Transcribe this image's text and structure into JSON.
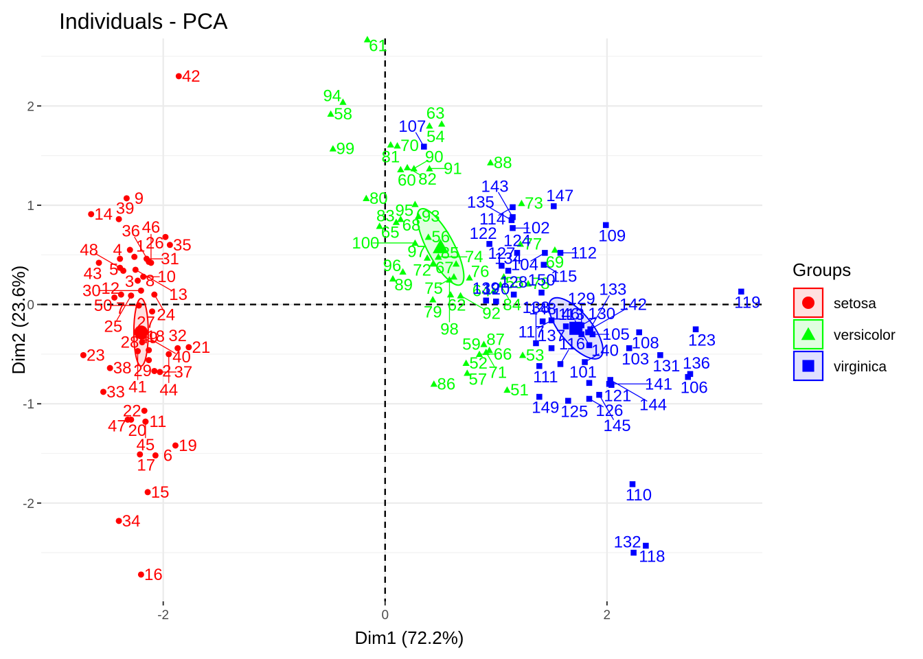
{
  "chart_data": {
    "type": "scatter",
    "title": "Individuals - PCA",
    "xlabel": "Dim1 (72.2%)",
    "ylabel": "Dim2 (23.6%)",
    "xlim": [
      -3.1,
      3.4
    ],
    "ylim": [
      -2.99,
      2.68
    ],
    "x_ticks": [
      -2,
      0,
      2
    ],
    "y_ticks": [
      -2,
      -1,
      0,
      1,
      2
    ],
    "x_tick_labels": [
      "-2",
      "0",
      "2"
    ],
    "y_tick_labels": [
      "-2",
      "-1",
      "0",
      "1",
      "2"
    ],
    "grid": true,
    "reference_lines": {
      "x": 0,
      "y": 0,
      "style": "dashed"
    },
    "legend": {
      "title": "Groups",
      "placement": "right",
      "items": [
        {
          "name": "setosa",
          "color": "#ff0000",
          "shape": "circle"
        },
        {
          "name": "versicolor",
          "color": "#00ff00",
          "shape": "triangle"
        },
        {
          "name": "virginica",
          "color": "#0000ff",
          "shape": "square"
        }
      ]
    },
    "series": [
      {
        "name": "setosa",
        "color": "#ff0000",
        "shape": "circle",
        "centroid": [
          -2.2,
          -0.28
        ],
        "ellipse": {
          "cx": -2.2,
          "cy": -0.28,
          "rx": 0.065,
          "ry": 0.34,
          "angle": 0
        },
        "points": [
          {
            "label": "1",
            "x": -2.26,
            "y": 0.48
          },
          {
            "label": "2",
            "x": -2.08,
            "y": -0.67
          },
          {
            "label": "3",
            "x": -2.36,
            "y": 0.34
          },
          {
            "label": "4",
            "x": -2.3,
            "y": 0.55
          },
          {
            "label": "5",
            "x": -2.39,
            "y": 0.46
          },
          {
            "label": "6",
            "x": -2.07,
            "y": -1.52
          },
          {
            "label": "7",
            "x": -2.44,
            "y": 0.07
          },
          {
            "label": "8",
            "x": -2.23,
            "y": 0.24
          },
          {
            "label": "9",
            "x": -2.33,
            "y": 1.07
          },
          {
            "label": "10",
            "x": -2.18,
            "y": 0.28
          },
          {
            "label": "11",
            "x": -2.16,
            "y": -1.18
          },
          {
            "label": "12",
            "x": -2.38,
            "y": 0.1
          },
          {
            "label": "13",
            "x": -2.25,
            "y": 0.35
          },
          {
            "label": "14",
            "x": -2.65,
            "y": 0.91
          },
          {
            "label": "15",
            "x": -2.14,
            "y": -1.89
          },
          {
            "label": "16",
            "x": -2.2,
            "y": -2.72
          },
          {
            "label": "17",
            "x": -2.21,
            "y": -1.51
          },
          {
            "label": "18",
            "x": -2.18,
            "y": -0.32
          },
          {
            "label": "19",
            "x": -1.89,
            "y": -1.42
          },
          {
            "label": "20",
            "x": -2.29,
            "y": -1.16
          },
          {
            "label": "21",
            "x": -1.77,
            "y": -0.43
          },
          {
            "label": "22",
            "x": -2.17,
            "y": -1.07
          },
          {
            "label": "23",
            "x": -2.72,
            "y": -0.51
          },
          {
            "label": "24",
            "x": -2.08,
            "y": 0.1
          },
          {
            "label": "25",
            "x": -2.29,
            "y": 0.09
          },
          {
            "label": "26",
            "x": -1.98,
            "y": 0.68
          },
          {
            "label": "27",
            "x": -2.1,
            "y": -0.07
          },
          {
            "label": "28",
            "x": -2.19,
            "y": -0.38
          },
          {
            "label": "29",
            "x": -2.13,
            "y": -0.56
          },
          {
            "label": "30",
            "x": -2.2,
            "y": 0.14
          },
          {
            "label": "31",
            "x": -2.15,
            "y": 0.46
          },
          {
            "label": "32",
            "x": -1.87,
            "y": -0.44
          },
          {
            "label": "33",
            "x": -2.54,
            "y": -0.88
          },
          {
            "label": "34",
            "x": -2.4,
            "y": -2.18
          },
          {
            "label": "35",
            "x": -1.94,
            "y": 0.6
          },
          {
            "label": "36",
            "x": -2.13,
            "y": 0.43
          },
          {
            "label": "37",
            "x": -2.03,
            "y": -0.68
          },
          {
            "label": "38",
            "x": -2.48,
            "y": -0.64
          },
          {
            "label": "39",
            "x": -2.4,
            "y": 0.86
          },
          {
            "label": "40",
            "x": -2.22,
            "y": -0.28
          },
          {
            "label": "41",
            "x": -2.23,
            "y": -0.47
          },
          {
            "label": "42",
            "x": -1.86,
            "y": 2.3
          },
          {
            "label": "43",
            "x": -2.58,
            "y": 0.42
          },
          {
            "label": "44",
            "x": -1.95,
            "y": -0.5
          },
          {
            "label": "45",
            "x": -2.16,
            "y": -1.18
          },
          {
            "label": "46",
            "x": -2.11,
            "y": 0.42
          },
          {
            "label": "47",
            "x": -2.32,
            "y": -1.16
          },
          {
            "label": "48",
            "x": -2.39,
            "y": 0.37
          },
          {
            "label": "49",
            "x": -2.13,
            "y": -0.46
          },
          {
            "label": "50",
            "x": -2.22,
            "y": -0.01
          }
        ]
      },
      {
        "name": "versicolor",
        "color": "#00ff00",
        "shape": "triangle",
        "centroid": [
          0.5,
          0.58
        ],
        "ellipse": {
          "cx": 0.5,
          "cy": 0.58,
          "rx": 0.12,
          "ry": 0.43,
          "angle": -28
        },
        "points": [
          {
            "label": "51",
            "x": 1.1,
            "y": -0.86
          },
          {
            "label": "52",
            "x": 0.73,
            "y": -0.59
          },
          {
            "label": "53",
            "x": 1.24,
            "y": -0.51
          },
          {
            "label": "54",
            "x": 0.4,
            "y": 1.8
          },
          {
            "label": "55",
            "x": 1.07,
            "y": 0.28
          },
          {
            "label": "56",
            "x": 0.39,
            "y": 0.68
          },
          {
            "label": "57",
            "x": 0.74,
            "y": -0.69
          },
          {
            "label": "58",
            "x": -0.49,
            "y": 1.92
          },
          {
            "label": "59",
            "x": 0.89,
            "y": -0.4
          },
          {
            "label": "60",
            "x": 0.14,
            "y": 1.36
          },
          {
            "label": "61",
            "x": -0.16,
            "y": 2.67
          },
          {
            "label": "62",
            "x": 0.59,
            "y": 0.1
          },
          {
            "label": "63",
            "x": 0.51,
            "y": 1.82
          },
          {
            "label": "64",
            "x": 0.98,
            "y": 0.14
          },
          {
            "label": "65",
            "x": -0.05,
            "y": 0.79
          },
          {
            "label": "66",
            "x": 0.85,
            "y": -0.5
          },
          {
            "label": "67",
            "x": 0.48,
            "y": 0.48
          },
          {
            "label": "68",
            "x": 0.14,
            "y": 0.86
          },
          {
            "label": "69",
            "x": 1.53,
            "y": 0.55
          },
          {
            "label": "70",
            "x": 0.11,
            "y": 1.6
          },
          {
            "label": "71",
            "x": 0.91,
            "y": -0.48
          },
          {
            "label": "72",
            "x": 0.43,
            "y": 0.41
          },
          {
            "label": "73",
            "x": 1.23,
            "y": 1.02
          },
          {
            "label": "74",
            "x": 0.48,
            "y": 0.48
          },
          {
            "label": "75",
            "x": 0.62,
            "y": 0.28
          },
          {
            "label": "76",
            "x": 0.76,
            "y": 0.27
          },
          {
            "label": "77",
            "x": 1.22,
            "y": 0.61
          },
          {
            "label": "78",
            "x": 1.29,
            "y": 0.21
          },
          {
            "label": "79",
            "x": 0.43,
            "y": 0.05
          },
          {
            "label": "80",
            "x": -0.17,
            "y": 1.07
          },
          {
            "label": "81",
            "x": 0.05,
            "y": 1.61
          },
          {
            "label": "82",
            "x": 0.2,
            "y": 1.38
          },
          {
            "label": "83",
            "x": 0.1,
            "y": 0.83
          },
          {
            "label": "84",
            "x": 1.04,
            "y": 0.2
          },
          {
            "label": "85",
            "x": 0.64,
            "y": 0.41
          },
          {
            "label": "86",
            "x": 0.44,
            "y": -0.8
          },
          {
            "label": "87",
            "x": 0.94,
            "y": -0.46
          },
          {
            "label": "88",
            "x": 0.95,
            "y": 1.43
          },
          {
            "label": "89",
            "x": 0.07,
            "y": 0.26
          },
          {
            "label": "90",
            "x": 0.26,
            "y": 1.37
          },
          {
            "label": "91",
            "x": 0.4,
            "y": 1.37
          },
          {
            "label": "92",
            "x": 0.68,
            "y": 0.09
          },
          {
            "label": "93",
            "x": 0.3,
            "y": 0.89
          },
          {
            "label": "94",
            "x": -0.38,
            "y": 2.04
          },
          {
            "label": "95",
            "x": 0.27,
            "y": 1.01
          },
          {
            "label": "96",
            "x": 0.16,
            "y": 0.33
          },
          {
            "label": "97",
            "x": 0.38,
            "y": 0.47
          },
          {
            "label": "98",
            "x": 0.58,
            "y": 0.25
          },
          {
            "label": "99",
            "x": -0.47,
            "y": 1.57
          },
          {
            "label": "100",
            "x": 0.27,
            "y": 0.62
          }
        ]
      },
      {
        "name": "virginica",
        "color": "#0000ff",
        "shape": "square",
        "centroid": [
          1.72,
          -0.24
        ],
        "ellipse": {
          "cx": 1.72,
          "cy": -0.24,
          "rx": 0.14,
          "ry": 0.38,
          "angle": -40
        },
        "points": [
          {
            "label": "101",
            "x": 1.84,
            "y": -0.79
          },
          {
            "label": "102",
            "x": 1.15,
            "y": 0.77
          },
          {
            "label": "103",
            "x": 2.2,
            "y": -0.44
          },
          {
            "label": "104",
            "x": 1.44,
            "y": 0.52
          },
          {
            "label": "105",
            "x": 1.87,
            "y": -0.3
          },
          {
            "label": "106",
            "x": 2.73,
            "y": -0.73
          },
          {
            "label": "107",
            "x": 0.35,
            "y": 1.59
          },
          {
            "label": "108",
            "x": 2.29,
            "y": -0.28
          },
          {
            "label": "109",
            "x": 1.99,
            "y": 0.8
          },
          {
            "label": "110",
            "x": 2.23,
            "y": -1.81
          },
          {
            "label": "111",
            "x": 1.39,
            "y": -0.62
          },
          {
            "label": "112",
            "x": 1.58,
            "y": 0.52
          },
          {
            "label": "113",
            "x": 1.84,
            "y": -0.41
          },
          {
            "label": "114",
            "x": 1.15,
            "y": 0.98
          },
          {
            "label": "115",
            "x": 1.43,
            "y": 0.4
          },
          {
            "label": "116",
            "x": 1.58,
            "y": -0.6
          },
          {
            "label": "117",
            "x": 1.5,
            "y": -0.16
          },
          {
            "label": "118",
            "x": 2.35,
            "y": -2.43
          },
          {
            "label": "119",
            "x": 3.21,
            "y": 0.13
          },
          {
            "label": "120",
            "x": 1.0,
            "y": 0.03
          },
          {
            "label": "121",
            "x": 2.04,
            "y": -0.81
          },
          {
            "label": "122",
            "x": 0.94,
            "y": 0.61
          },
          {
            "label": "123",
            "x": 2.8,
            "y": -0.25
          },
          {
            "label": "124",
            "x": 1.19,
            "y": 0.52
          },
          {
            "label": "125",
            "x": 1.65,
            "y": -0.97
          },
          {
            "label": "126",
            "x": 1.84,
            "y": -0.95
          },
          {
            "label": "127",
            "x": 1.05,
            "y": 0.39
          },
          {
            "label": "128",
            "x": 1.16,
            "y": 0.1
          },
          {
            "label": "129",
            "x": 1.77,
            "y": -0.3
          },
          {
            "label": "130",
            "x": 1.77,
            "y": -0.21
          },
          {
            "label": "131",
            "x": 2.48,
            "y": -0.51
          },
          {
            "label": "132",
            "x": 2.24,
            "y": -2.5
          },
          {
            "label": "133",
            "x": 1.83,
            "y": -0.28
          },
          {
            "label": "134",
            "x": 1.11,
            "y": 0.34
          },
          {
            "label": "135",
            "x": 1.14,
            "y": 0.85
          },
          {
            "label": "136",
            "x": 2.75,
            "y": -0.7
          },
          {
            "label": "137",
            "x": 1.5,
            "y": -0.44
          },
          {
            "label": "138",
            "x": 1.36,
            "y": -0.39
          },
          {
            "label": "139",
            "x": 0.91,
            "y": 0.04
          },
          {
            "label": "140",
            "x": 1.8,
            "y": -0.58
          },
          {
            "label": "141",
            "x": 2.02,
            "y": -0.8
          },
          {
            "label": "142",
            "x": 1.85,
            "y": -0.25
          },
          {
            "label": "143",
            "x": 1.15,
            "y": 0.88
          },
          {
            "label": "144",
            "x": 2.03,
            "y": -0.76
          },
          {
            "label": "145",
            "x": 1.93,
            "y": -0.91
          },
          {
            "label": "146",
            "x": 1.63,
            "y": -0.22
          },
          {
            "label": "147",
            "x": 1.52,
            "y": 0.99
          },
          {
            "label": "148",
            "x": 1.42,
            "y": -0.17
          },
          {
            "label": "149",
            "x": 1.39,
            "y": -0.93
          },
          {
            "label": "150",
            "x": 1.41,
            "y": 0.12
          }
        ]
      }
    ]
  }
}
